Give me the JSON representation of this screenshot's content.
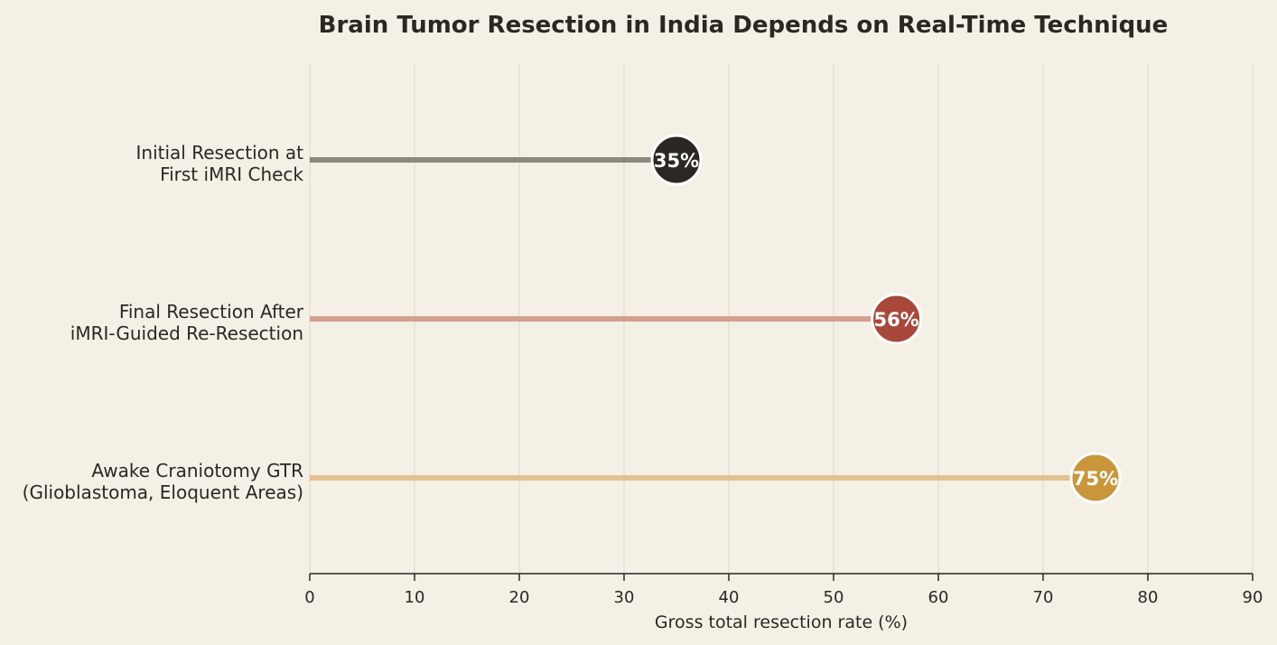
{
  "chart_data": {
    "type": "lollipop",
    "title": "Brain Tumor Resection in India Depends on Real-Time Technique",
    "xlabel": "Gross total resection rate (%)",
    "xlim": [
      0,
      90
    ],
    "xticks": [
      "0",
      "10",
      "20",
      "30",
      "40",
      "50",
      "60",
      "70",
      "80",
      "90"
    ],
    "grid": "vertical",
    "items": [
      {
        "label_lines": [
          "Initial Resection at",
          "First iMRI Check"
        ],
        "value": 35,
        "value_label": "35%",
        "dot_color": "#2b2722",
        "stem_color": "#8c8880"
      },
      {
        "label_lines": [
          "Final Resection After",
          "iMRI-Guided Re-Resection"
        ],
        "value": 56,
        "value_label": "56%",
        "dot_color": "#a8483a",
        "stem_color": "#d4a090"
      },
      {
        "label_lines": [
          "Awake Craniotomy GTR",
          "(Glioblastoma, Eloquent Areas)"
        ],
        "value": 75,
        "value_label": "75%",
        "dot_color": "#c9973a",
        "stem_color": "#e3c190"
      }
    ]
  }
}
